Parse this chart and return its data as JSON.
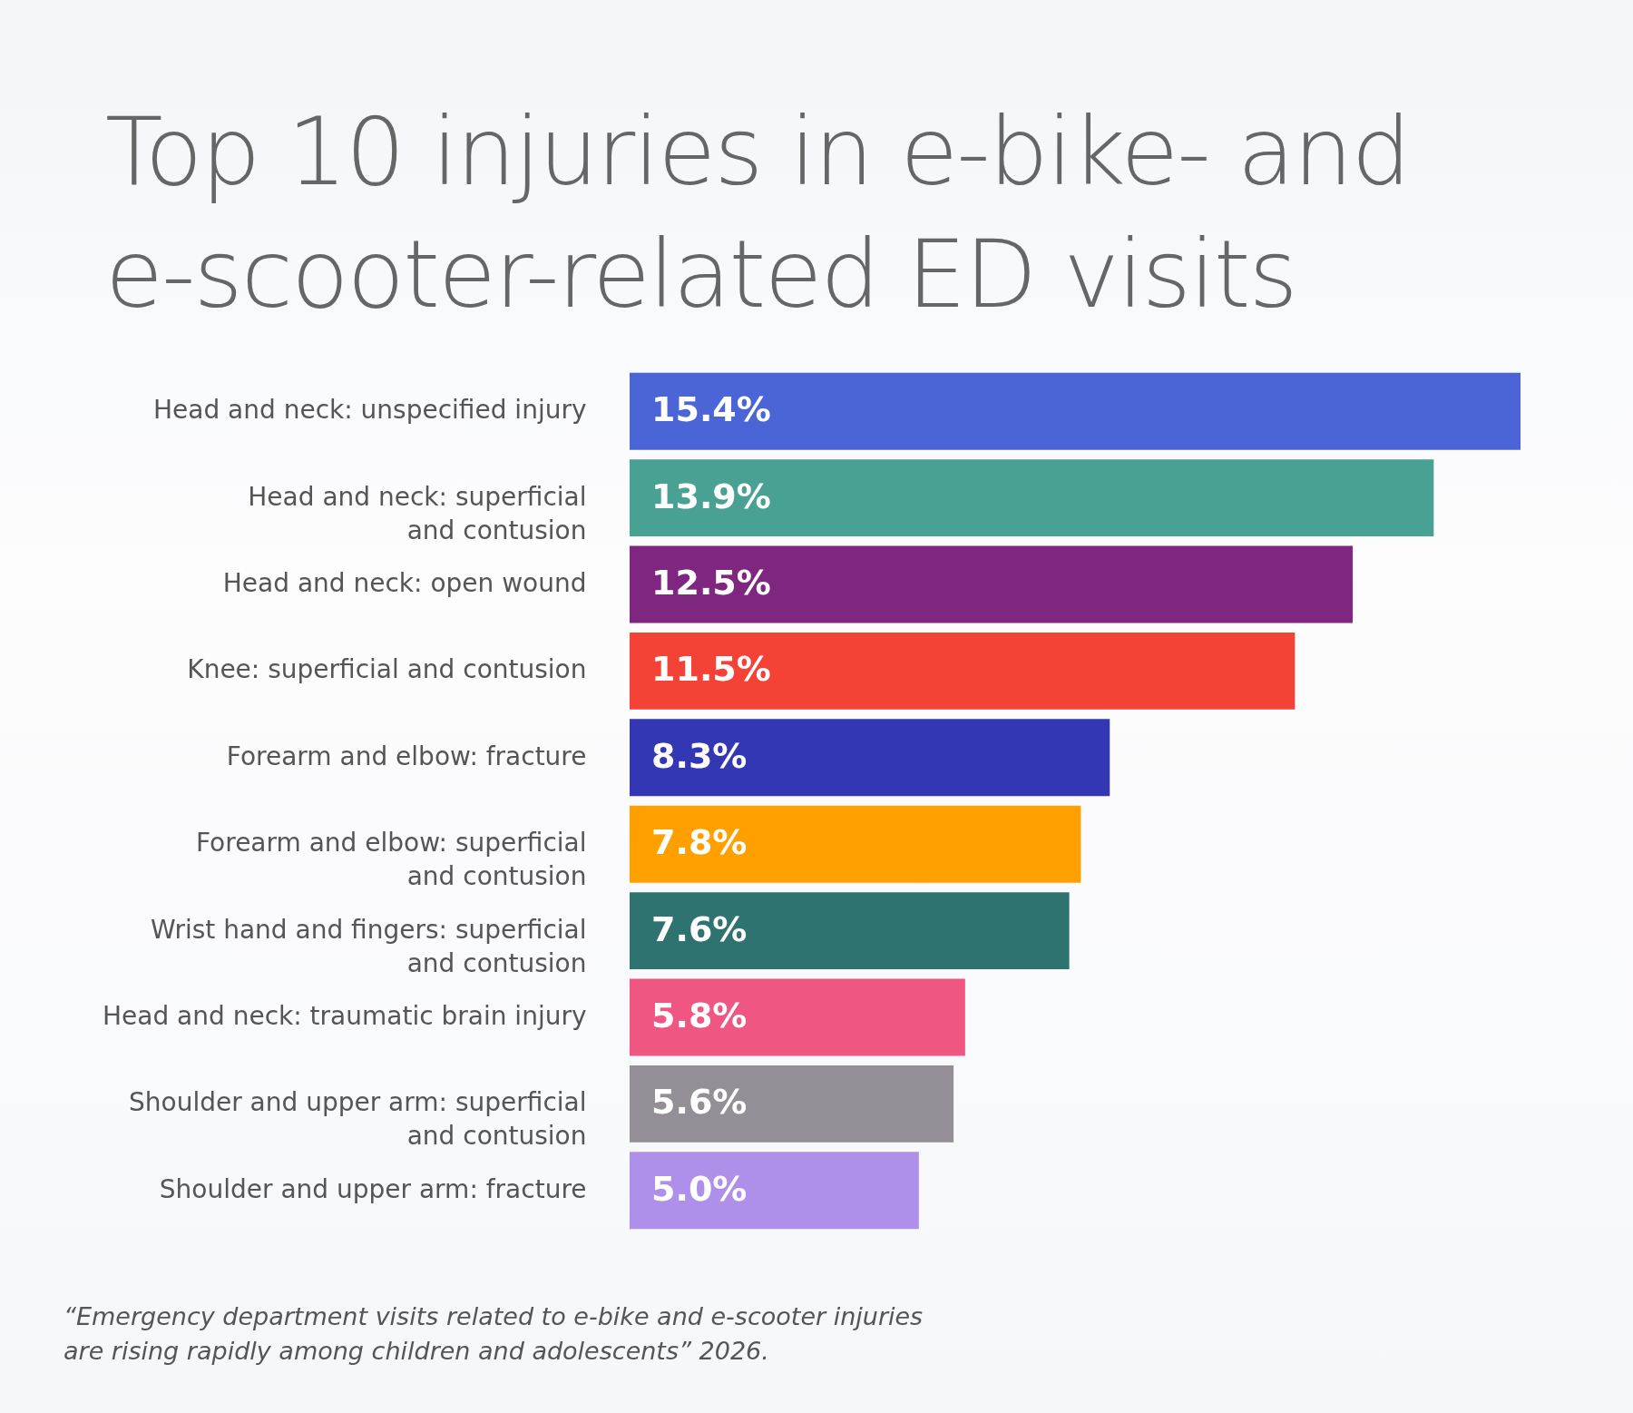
{
  "chart_data": {
    "type": "bar",
    "orientation": "horizontal",
    "title": "Top 10 injuries in e-bike- and e-scooter-related ED visits",
    "categories": [
      "Head and neck: unspecified injury",
      "Head and neck: superficial\nand contusion",
      "Head and neck: open wound",
      "Knee: superficial and contusion",
      "Forearm and elbow: fracture",
      "Forearm and elbow: superficial\nand contusion",
      "Wrist hand and fingers: superficial\nand contusion",
      "Head and neck: traumatic brain injury",
      "Shoulder and upper arm: superficial\nand contusion",
      "Shoulder and upper arm: fracture"
    ],
    "values": [
      15.4,
      13.9,
      12.5,
      11.5,
      8.3,
      7.8,
      7.6,
      5.8,
      5.6,
      5.0
    ],
    "colors": [
      "#4c65d6",
      "#48a193",
      "#7e2680",
      "#f44236",
      "#3337b4",
      "#ffa000",
      "#2e7370",
      "#ef5681",
      "#948e97",
      "#ae90eb"
    ],
    "value_labels": [
      "15.4%",
      "13.9%",
      "12.5%",
      "11.5%",
      "8.3%",
      "7.8%",
      "7.6%",
      "5.8%",
      "5.6%",
      "5.0%"
    ],
    "annotations": [
      "“Emergency department visits related to e-bike and e-scooter injuries are rising rapidly among children and adolescents” 2026."
    ],
    "legend": false
  }
}
